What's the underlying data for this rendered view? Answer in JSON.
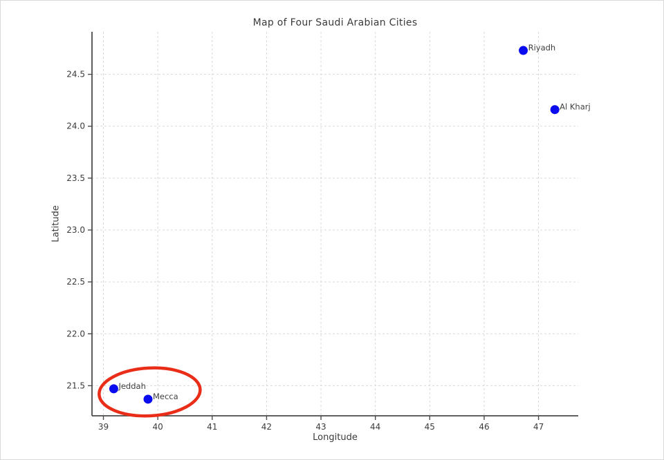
{
  "page": {
    "background": "#ffffff",
    "border_color": "#d9d9d9"
  },
  "chart_data": {
    "type": "scatter",
    "title": "Map of Four Saudi Arabian Cities",
    "xlabel": "Longitude",
    "ylabel": "Latitude",
    "xlim": [
      38.79,
      47.73
    ],
    "ylim": [
      21.21,
      24.91
    ],
    "x_ticks": [
      39,
      40,
      41,
      42,
      43,
      44,
      45,
      46,
      47
    ],
    "y_ticks": [
      21.5,
      22.0,
      22.5,
      23.0,
      23.5,
      24.0,
      24.5
    ],
    "grid": true,
    "grid_style": "dashed",
    "legend": "none",
    "points": [
      {
        "name": "Riyadh",
        "lon": 46.72,
        "lat": 24.73
      },
      {
        "name": "Al Kharj",
        "lon": 47.3,
        "lat": 24.16
      },
      {
        "name": "Jeddah",
        "lon": 39.19,
        "lat": 21.47
      },
      {
        "name": "Mecca",
        "lon": 39.82,
        "lat": 21.37
      }
    ],
    "annotation_ellipse": {
      "center": [
        39.85,
        21.44
      ],
      "rx_data": 0.93,
      "ry_data": 0.23,
      "rotation_deg": -3
    },
    "colors": {
      "marker": "#0b0bf0",
      "annotation": "#e92d18",
      "axis": "#4a4a4a",
      "grid": "#d9d9d9",
      "tick_text": "#3c3c3c",
      "point_label_text": "#3f3f3f"
    }
  }
}
